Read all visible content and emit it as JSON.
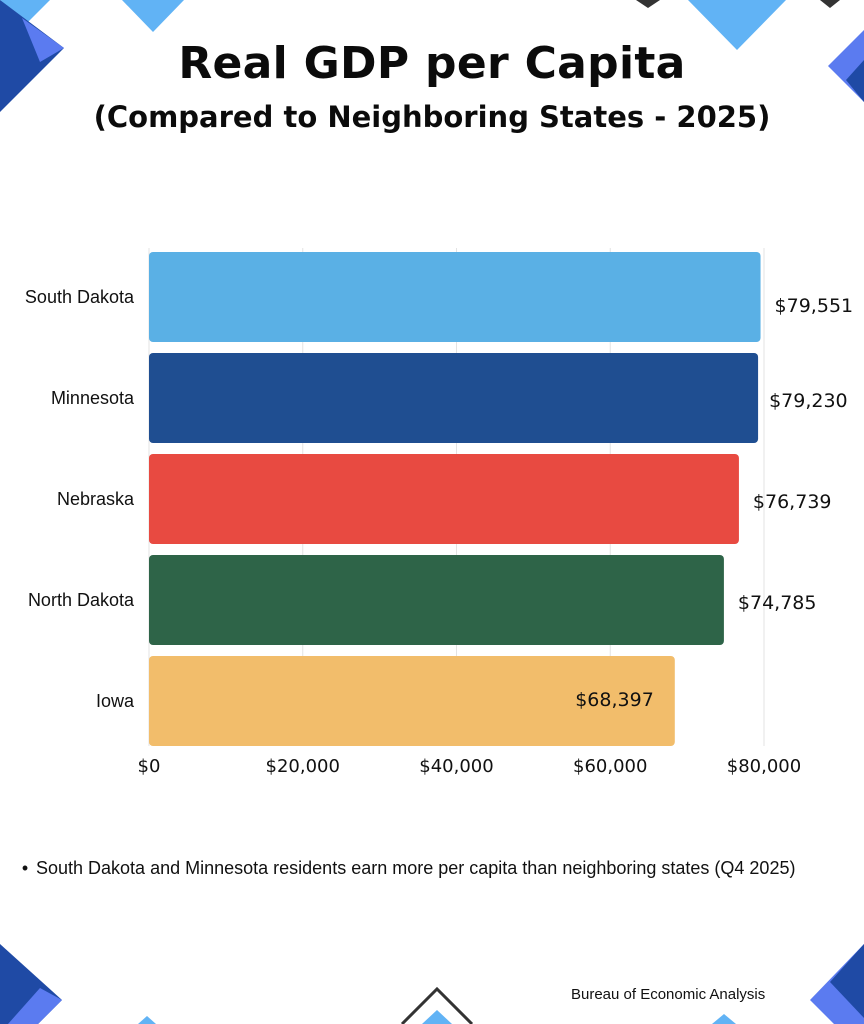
{
  "title": "Real GDP per Capita",
  "subtitle": "(Compared to Neighboring States - 2025)",
  "note": "South Dakota and Minnesota residents earn more per capita than neighboring states (Q4 2025)",
  "source": "Bureau of Economic Analysis",
  "chart_data": {
    "type": "bar",
    "orientation": "horizontal",
    "title": "Real GDP per Capita",
    "subtitle": "(Compared to Neighboring States - 2025)",
    "categories": [
      "South Dakota",
      "Minnesota",
      "Nebraska",
      "North Dakota",
      "Iowa"
    ],
    "values": [
      79551,
      79230,
      76739,
      74785,
      68397
    ],
    "data_labels": [
      "$79,551",
      "$79,230",
      "$76,739",
      "$74,785",
      "$68,397"
    ],
    "bar_colors": [
      "#5ab0e5",
      "#1f4e91",
      "#e84a41",
      "#2e6448",
      "#f2bd6b"
    ],
    "xlim": [
      0,
      80000
    ],
    "xticks": [
      0,
      20000,
      40000,
      60000,
      80000
    ],
    "xtick_labels": [
      "$0",
      "$20,000",
      "$40,000",
      "$60,000",
      "$80,000"
    ],
    "grid": true,
    "legend": "none"
  },
  "colors": {
    "decor_light_blue": "#61b3f5",
    "decor_dark_blue": "#1f4aa5",
    "decor_mid_blue": "#5b7bf0",
    "gridline": "#e3e3e3"
  }
}
